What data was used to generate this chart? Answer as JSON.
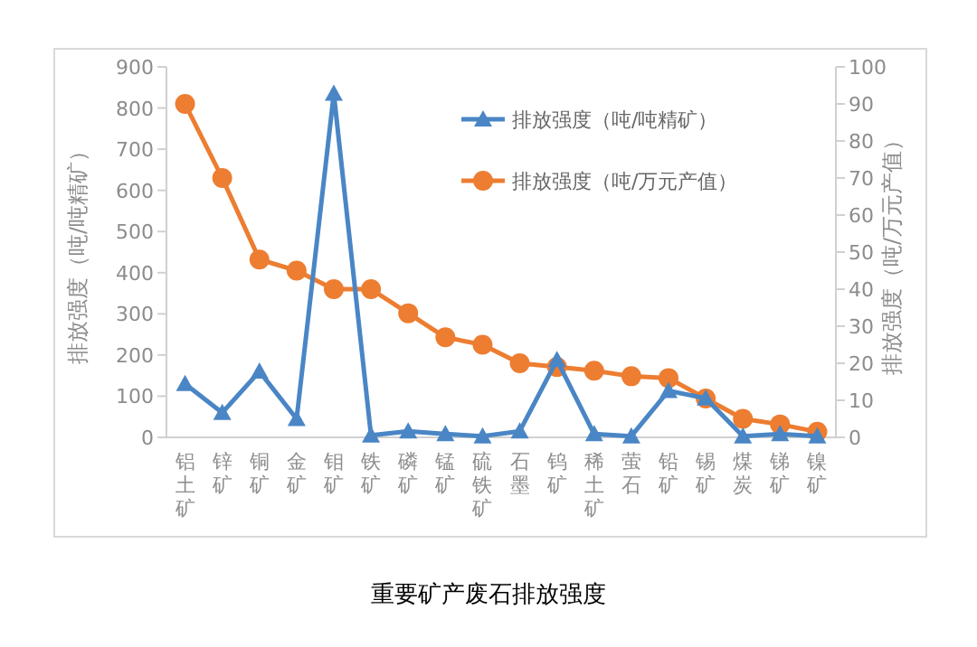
{
  "chart_data": {
    "type": "line",
    "title": "重要矿产废石排放强度",
    "categories": [
      "铝土矿",
      "锌矿",
      "铜矿",
      "金矿",
      "钼矿",
      "铁矿",
      "磷矿",
      "锰矿",
      "硫铁矿",
      "石墨",
      "钨矿",
      "稀土矿",
      "萤石",
      "铅矿",
      "锡矿",
      "煤炭",
      "锑矿",
      "镍矿"
    ],
    "series": [
      {
        "name": "排放强度（吨/吨精矿）",
        "color": "#4a86c5",
        "marker": "triangle",
        "values": [
          130,
          60,
          160,
          45,
          835,
          5,
          15,
          8,
          3,
          15,
          188,
          8,
          3,
          113,
          95,
          3,
          8,
          3
        ]
      },
      {
        "name": "排放强度（吨/万元产值）",
        "color": "#ed7d31",
        "marker": "circle",
        "axis": "y2",
        "values": [
          90,
          70,
          48,
          45,
          40,
          40,
          33.5,
          27,
          25,
          20,
          19,
          18,
          16.5,
          16,
          10.5,
          5,
          3.5,
          1.5
        ]
      }
    ],
    "ylabel": "排放强度（吨/吨精矿）",
    "y2label": "排放强度（吨/万元产值）",
    "ylim": [
      0,
      900
    ],
    "yticks": [
      0,
      100,
      200,
      300,
      400,
      500,
      600,
      700,
      800,
      900
    ],
    "y2lim": [
      0,
      100
    ],
    "y2ticks": [
      0,
      10,
      20,
      30,
      40,
      50,
      60,
      70,
      80,
      90,
      100
    ],
    "legend": "top right"
  }
}
